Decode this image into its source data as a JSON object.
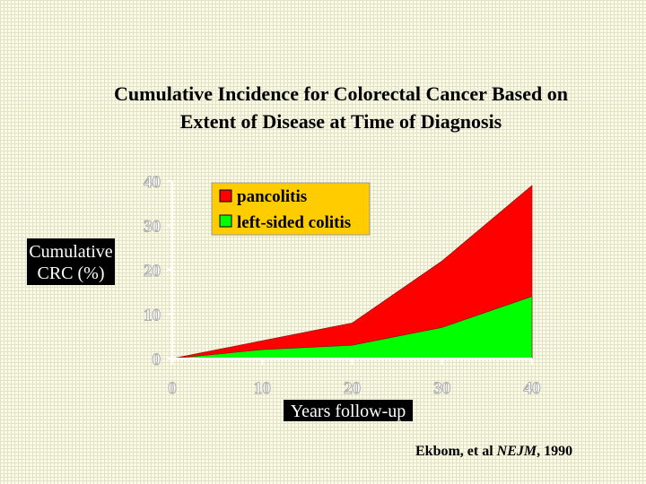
{
  "chart_data": {
    "type": "area",
    "title_lines": [
      "Cumulative Incidence for Colorectal Cancer Based on",
      "Extent of Disease at Time of Diagnosis"
    ],
    "ylabel_lines": [
      "Cumulative",
      "CRC (%)"
    ],
    "xlabel": "Years follow-up",
    "x": [
      0,
      10,
      20,
      30,
      40
    ],
    "xlim": [
      0,
      40
    ],
    "ylim": [
      0,
      40
    ],
    "xticks": [
      0,
      10,
      20,
      30,
      40
    ],
    "yticks": [
      0,
      10,
      20,
      30,
      40
    ],
    "grid": false,
    "legend_position": "top-left",
    "series": [
      {
        "name": "pancolitis",
        "color": "#ff0000",
        "values": [
          0,
          4,
          8,
          22,
          39
        ]
      },
      {
        "name": "left-sided colitis",
        "color": "#00ff00",
        "values": [
          0,
          2,
          3,
          7,
          14
        ]
      }
    ],
    "citation": {
      "prefix": "Ekbom, et al ",
      "journal": "NEJM",
      "suffix": ", 1990"
    }
  }
}
